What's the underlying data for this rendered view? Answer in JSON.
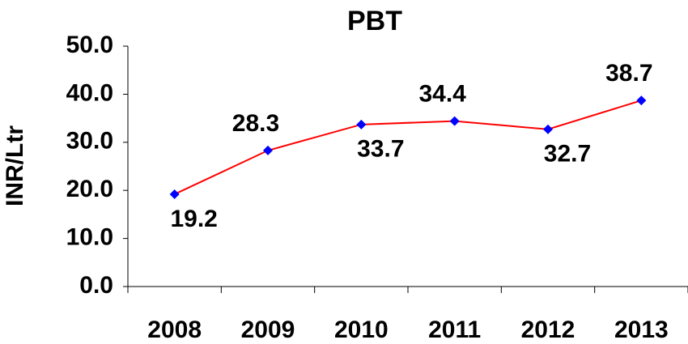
{
  "chart_data": {
    "type": "line",
    "title": "PBT",
    "y_label": "INR/Ltr",
    "categories": [
      "2008",
      "2009",
      "2010",
      "2011",
      "2012",
      "2013"
    ],
    "series": [
      {
        "name": "PBT",
        "color": "#ff0000",
        "marker_color": "#0000ff",
        "values": [
          19.2,
          28.3,
          33.7,
          34.4,
          32.7,
          38.7
        ]
      }
    ],
    "ylim": [
      0,
      50
    ],
    "yticks": [
      {
        "value": 0,
        "label": "0.0"
      },
      {
        "value": 10,
        "label": "10.0"
      },
      {
        "value": 20,
        "label": "20.0"
      },
      {
        "value": 30,
        "label": "30.0"
      },
      {
        "value": 40,
        "label": "40.0"
      },
      {
        "value": 50,
        "label": "50.0"
      }
    ],
    "grid": false
  }
}
